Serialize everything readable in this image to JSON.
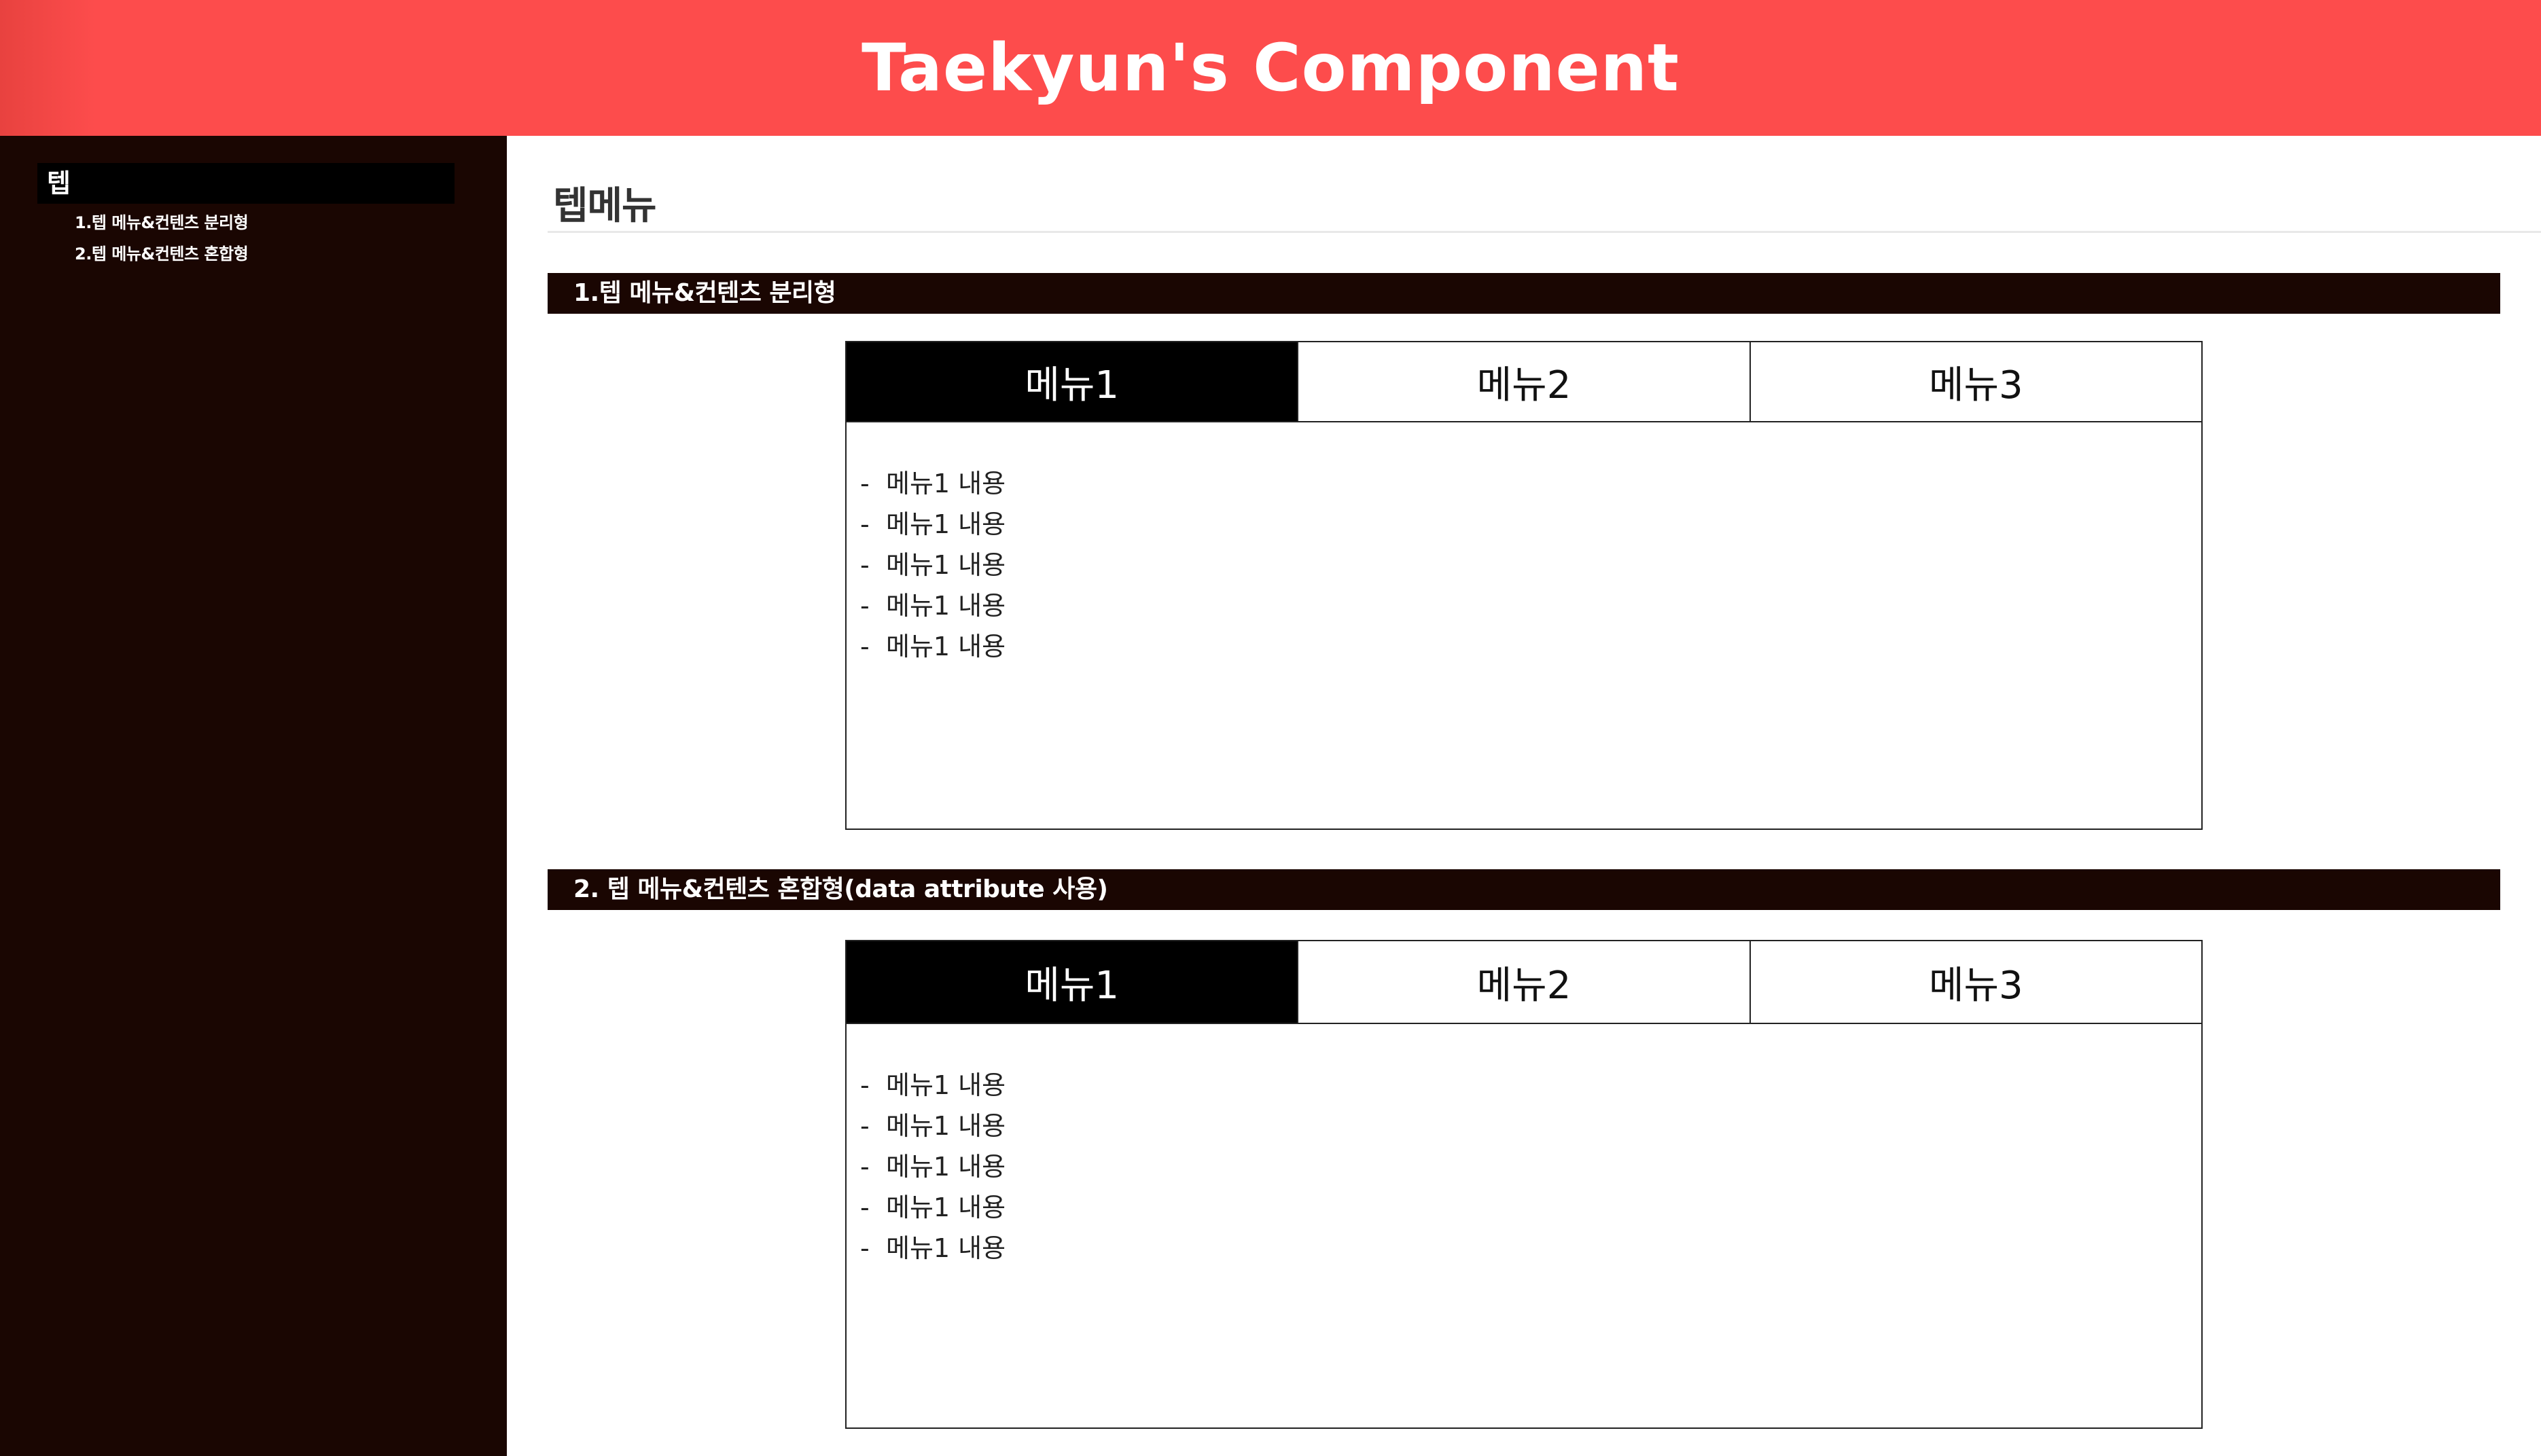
{
  "header": {
    "title": "Taekyun's Component"
  },
  "sidebar": {
    "group_label": "텝",
    "items": [
      {
        "label": "1.텝 메뉴&컨텐츠 분리형"
      },
      {
        "label": "2.텝 메뉴&컨텐츠 혼합형"
      }
    ]
  },
  "main": {
    "page_title": "텝메뉴",
    "sections": [
      {
        "title": "1.텝 메뉴&컨텐츠 분리형",
        "tabs": [
          "메뉴1",
          "메뉴2",
          "메뉴3"
        ],
        "active_tab": 0,
        "content_items": [
          "메뉴1 내용",
          "메뉴1 내용",
          "메뉴1 내용",
          "메뉴1 내용",
          "메뉴1 내용"
        ]
      },
      {
        "title": "2. 텝 메뉴&컨텐츠 혼합형(data attribute 사용)",
        "tabs": [
          "메뉴1",
          "메뉴2",
          "메뉴3"
        ],
        "active_tab": 0,
        "content_items": [
          "메뉴1 내용",
          "메뉴1 내용",
          "메뉴1 내용",
          "메뉴1 내용",
          "메뉴1 내용"
        ]
      }
    ],
    "bullet": "-"
  },
  "colors": {
    "header_bg": "#fd4c4c",
    "sidebar_bg": "#1a0602",
    "active_tab_bg": "#000000"
  }
}
